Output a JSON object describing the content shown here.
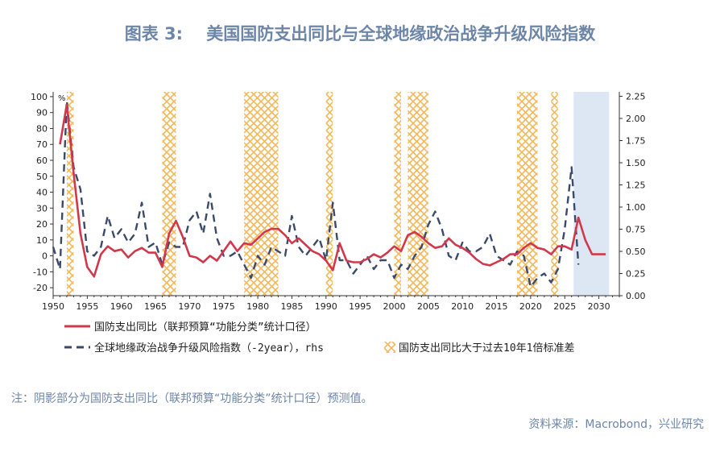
{
  "figure": {
    "title": "图表 3:    美国国防支出同比与全球地缘政治战争升级风险指数",
    "note": "注：阴影部分为国防支出同比（联邦预算“功能分类”统计口径）预测值。",
    "source": "资料来源：Macrobond，兴业研究"
  },
  "chart_data": {
    "type": "line",
    "ylabel_left_unit": "%",
    "x_ticks": [
      1950,
      1955,
      1960,
      1965,
      1970,
      1975,
      1980,
      1985,
      1990,
      1995,
      2000,
      2005,
      2010,
      2015,
      2020,
      2025,
      2030
    ],
    "y_left_ticks": [
      100,
      90,
      80,
      70,
      60,
      50,
      40,
      30,
      20,
      10,
      0,
      -10,
      -20
    ],
    "y_left_lim": [
      -25,
      103
    ],
    "y_right_ticks": [
      "2.25",
      "2.00",
      "1.75",
      "1.50",
      "1.25",
      "1.00",
      "0.75",
      "0.50",
      "0.25",
      "0.00"
    ],
    "y_right_lim": [
      0,
      2.3
    ],
    "x_lim": [
      1950,
      2033
    ],
    "colors": {
      "defense": "#d1384b",
      "geo_risk": "#3c4a6a",
      "hatch": "#f2b85a",
      "forecast": "#dde7f3"
    },
    "forecast_span": [
      2026.3,
      2031.5
    ],
    "hatch_spans": [
      [
        1952,
        1953
      ],
      [
        1966,
        1968
      ],
      [
        1978,
        1983
      ],
      [
        1990,
        1991
      ],
      [
        2000,
        2001
      ],
      [
        2002,
        2005
      ],
      [
        2018,
        2021
      ],
      [
        2023,
        2024
      ]
    ],
    "series": [
      {
        "name": "国防支出同比（联邦预算“功能分类”统计口径）",
        "axis": "left",
        "x": [
          1951,
          1952,
          1953,
          1954,
          1955,
          1956,
          1957,
          1958,
          1959,
          1960,
          1961,
          1962,
          1963,
          1964,
          1965,
          1966,
          1967,
          1968,
          1969,
          1970,
          1971,
          1972,
          1973,
          1974,
          1975,
          1976,
          1977,
          1978,
          1979,
          1980,
          1981,
          1982,
          1983,
          1984,
          1985,
          1986,
          1987,
          1988,
          1989,
          1990,
          1991,
          1992,
          1993,
          1994,
          1995,
          1996,
          1997,
          1998,
          1999,
          2000,
          2001,
          2002,
          2003,
          2004,
          2005,
          2006,
          2007,
          2008,
          2009,
          2010,
          2011,
          2012,
          2013,
          2014,
          2015,
          2016,
          2017,
          2018,
          2019,
          2020,
          2021,
          2022,
          2023,
          2024,
          2025,
          2026,
          2027,
          2028,
          2029,
          2030,
          2031
        ],
        "values": [
          70,
          95,
          52,
          14,
          -7,
          -13,
          1,
          6,
          3,
          4,
          -1,
          3,
          5,
          2,
          2,
          -7,
          14,
          22,
          12,
          0,
          -1,
          -4,
          0,
          -3,
          3,
          9,
          3,
          8,
          7,
          11,
          15,
          17,
          17,
          13,
          8,
          11,
          7,
          3,
          1,
          -3,
          -9,
          8,
          -3,
          -4,
          -4,
          -2,
          1,
          -1,
          2,
          6,
          3,
          13,
          15,
          12,
          8,
          5,
          6,
          11,
          7,
          5,
          2,
          -2,
          -5,
          -6,
          -4,
          -2,
          1,
          1,
          5,
          8,
          5,
          4,
          1,
          6,
          6,
          4,
          24,
          10,
          1,
          1,
          1
        ]
      },
      {
        "name": "全球地缘政治战争升级风险指数（-2year），rhs",
        "axis": "right",
        "x": [
          1950,
          1951,
          1952,
          1953,
          1954,
          1955,
          1956,
          1957,
          1958,
          1959,
          1960,
          1961,
          1962,
          1963,
          1964,
          1965,
          1966,
          1967,
          1968,
          1969,
          1970,
          1971,
          1972,
          1973,
          1974,
          1975,
          1976,
          1977,
          1978,
          1979,
          1980,
          1981,
          1982,
          1983,
          1984,
          1985,
          1986,
          1987,
          1988,
          1989,
          1990,
          1991,
          1992,
          1993,
          1994,
          1995,
          1996,
          1997,
          1998,
          1999,
          2000,
          2001,
          2002,
          2003,
          2004,
          2005,
          2006,
          2007,
          2008,
          2009,
          2010,
          2011,
          2012,
          2013,
          2014,
          2015,
          2016,
          2017,
          2018,
          2019,
          2020,
          2021,
          2022,
          2023,
          2024,
          2025,
          2026,
          2027
        ],
        "values": [
          0.55,
          0.3,
          2.2,
          1.45,
          1.2,
          0.5,
          0.45,
          0.55,
          0.9,
          0.65,
          0.75,
          0.6,
          0.7,
          1.05,
          0.55,
          0.6,
          0.35,
          0.6,
          0.55,
          0.55,
          0.85,
          0.95,
          0.7,
          1.15,
          0.65,
          0.45,
          0.45,
          0.5,
          0.35,
          0.2,
          0.45,
          0.35,
          0.55,
          0.5,
          0.45,
          0.9,
          0.55,
          0.45,
          0.55,
          0.65,
          0.4,
          1.05,
          0.4,
          0.4,
          0.25,
          0.35,
          0.45,
          0.3,
          0.4,
          0.4,
          0.2,
          0.35,
          0.3,
          0.45,
          0.55,
          0.8,
          0.95,
          0.75,
          0.45,
          0.4,
          0.6,
          0.5,
          0.5,
          0.55,
          0.7,
          0.45,
          0.4,
          0.35,
          0.5,
          0.45,
          0.1,
          0.2,
          0.25,
          0.15,
          0.3,
          0.75,
          1.45,
          0.35
        ]
      },
      {
        "name": "国防支出同比大于过去10年1倍标准差",
        "axis": "none"
      }
    ]
  }
}
